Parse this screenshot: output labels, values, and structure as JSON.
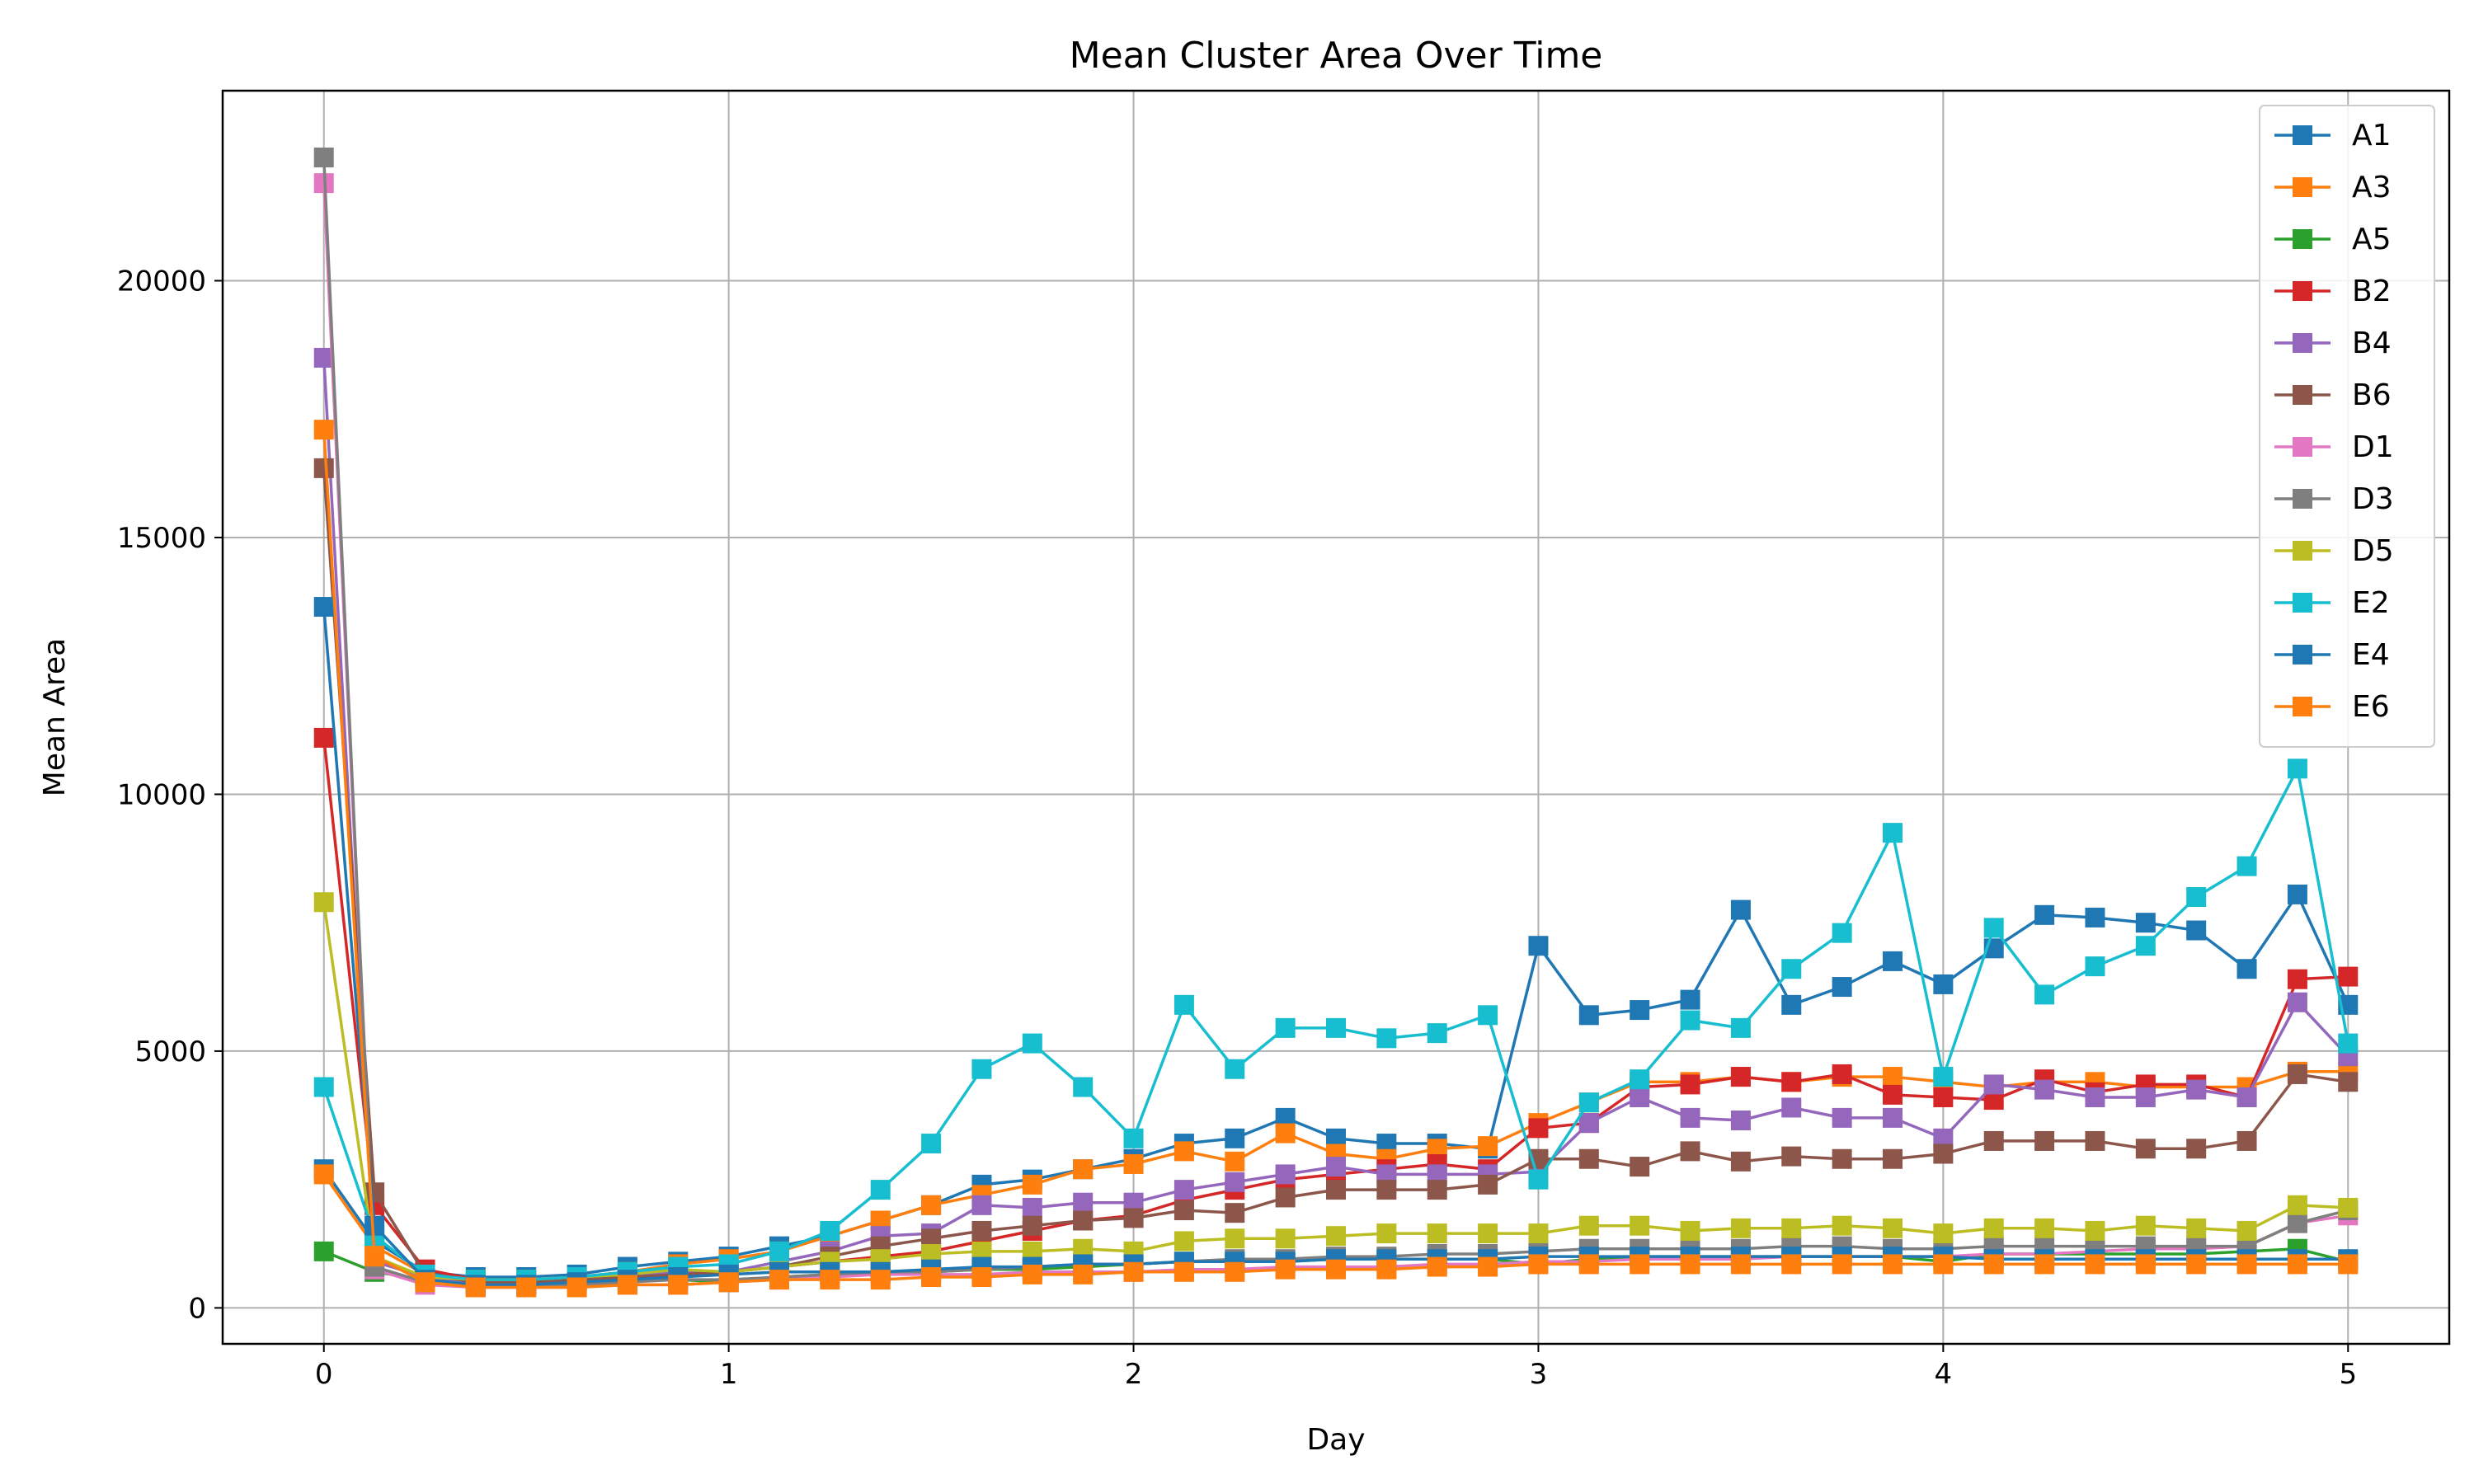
{
  "chart_data": {
    "type": "line",
    "title": "Mean Cluster Area Over Time",
    "xlabel": "Day",
    "ylabel": "Mean Area",
    "xlim": [
      -0.25,
      5.25
    ],
    "ylim": [
      -700,
      23700
    ],
    "xticks": [
      0,
      1,
      2,
      3,
      4,
      5
    ],
    "yticks": [
      0,
      5000,
      10000,
      15000,
      20000
    ],
    "grid": true,
    "legend_position": "top-right",
    "marker": "square",
    "x": [
      0,
      0.125,
      0.25,
      0.375,
      0.5,
      0.625,
      0.75,
      0.875,
      1,
      1.125,
      1.25,
      1.375,
      1.5,
      1.625,
      1.75,
      1.875,
      2,
      2.125,
      2.25,
      2.375,
      2.5,
      2.625,
      2.75,
      2.875,
      3,
      3.125,
      3.25,
      3.375,
      3.5,
      3.625,
      3.75,
      3.875,
      4,
      4.125,
      4.25,
      4.375,
      4.5,
      4.625,
      4.75,
      4.875,
      5
    ],
    "series": [
      {
        "name": "A1",
        "color": "#1f77b4",
        "values": [
          2700,
          1300,
          700,
          600,
          600,
          650,
          800,
          900,
          1000,
          1200,
          1400,
          1700,
          2000,
          2400,
          2500,
          2700,
          2900,
          3200,
          3300,
          3700,
          3300,
          3200,
          3200,
          3100,
          7050,
          5700,
          5800,
          6000,
          7750,
          5900,
          6250,
          6750,
          6300,
          7000,
          7650,
          7600,
          7500,
          7350,
          6600,
          8050,
          5900
        ]
      },
      {
        "name": "A3",
        "color": "#ff7f0e",
        "values": [
          2600,
          1200,
          650,
          550,
          550,
          600,
          700,
          850,
          950,
          1100,
          1400,
          1700,
          2000,
          2200,
          2400,
          2700,
          2800,
          3050,
          2850,
          3400,
          3000,
          2900,
          3100,
          3150,
          3600,
          4000,
          4400,
          4400,
          4500,
          4400,
          4500,
          4500,
          4400,
          4300,
          4400,
          4400,
          4300,
          4300,
          4300,
          4600,
          4600
        ]
      },
      {
        "name": "A5",
        "color": "#2ca02c",
        "values": [
          1100,
          700,
          550,
          450,
          450,
          500,
          550,
          550,
          500,
          600,
          650,
          700,
          700,
          750,
          750,
          800,
          850,
          900,
          900,
          900,
          950,
          950,
          950,
          950,
          850,
          950,
          1000,
          1000,
          1000,
          1000,
          1000,
          1000,
          900,
          1050,
          1050,
          1050,
          1050,
          1050,
          1100,
          1150,
          900
        ]
      },
      {
        "name": "B2",
        "color": "#d62728",
        "values": [
          11100,
          2000,
          750,
          550,
          550,
          600,
          650,
          700,
          700,
          800,
          900,
          1000,
          1100,
          1300,
          1500,
          1700,
          1800,
          2100,
          2300,
          2500,
          2600,
          2700,
          2800,
          2700,
          3500,
          3600,
          4300,
          4350,
          4500,
          4400,
          4550,
          4150,
          4100,
          4050,
          4450,
          4200,
          4350,
          4350,
          4100,
          6400,
          6450
        ]
      },
      {
        "name": "B4",
        "color": "#9467bd",
        "values": [
          18500,
          900,
          600,
          500,
          500,
          550,
          650,
          700,
          700,
          900,
          1100,
          1400,
          1450,
          2000,
          1950,
          2050,
          2050,
          2300,
          2450,
          2600,
          2750,
          2600,
          2600,
          2600,
          2650,
          3600,
          4100,
          3700,
          3650,
          3900,
          3700,
          3700,
          3300,
          4350,
          4250,
          4100,
          4100,
          4250,
          4100,
          5950,
          4900
        ]
      },
      {
        "name": "B6",
        "color": "#8c564b",
        "values": [
          16350,
          2250,
          650,
          500,
          500,
          550,
          600,
          650,
          700,
          800,
          1000,
          1200,
          1350,
          1500,
          1600,
          1700,
          1750,
          1900,
          1850,
          2150,
          2300,
          2300,
          2300,
          2400,
          2900,
          2900,
          2750,
          3050,
          2850,
          2950,
          2900,
          2900,
          3000,
          3250,
          3250,
          3250,
          3100,
          3100,
          3250,
          4550,
          4400
        ]
      },
      {
        "name": "D1",
        "color": "#e377c2",
        "values": [
          21900,
          750,
          450,
          400,
          400,
          400,
          450,
          450,
          500,
          550,
          600,
          650,
          650,
          650,
          700,
          700,
          700,
          750,
          750,
          800,
          800,
          800,
          850,
          850,
          900,
          900,
          950,
          950,
          950,
          1000,
          1000,
          1000,
          1000,
          1050,
          1050,
          1100,
          1150,
          1150,
          1200,
          1650,
          1800
        ]
      },
      {
        "name": "D3",
        "color": "#7f7f7f",
        "values": [
          22400,
          800,
          500,
          450,
          450,
          450,
          500,
          550,
          550,
          600,
          650,
          700,
          700,
          750,
          800,
          850,
          850,
          900,
          950,
          950,
          1000,
          1000,
          1050,
          1050,
          1100,
          1150,
          1150,
          1150,
          1150,
          1200,
          1200,
          1150,
          1150,
          1200,
          1200,
          1200,
          1200,
          1200,
          1200,
          1650,
          1900
        ]
      },
      {
        "name": "D5",
        "color": "#bcbd22",
        "values": [
          7900,
          1000,
          600,
          550,
          550,
          600,
          650,
          750,
          700,
          800,
          900,
          950,
          1050,
          1100,
          1100,
          1150,
          1100,
          1300,
          1350,
          1350,
          1400,
          1450,
          1450,
          1450,
          1450,
          1600,
          1600,
          1500,
          1550,
          1550,
          1600,
          1550,
          1450,
          1550,
          1550,
          1500,
          1600,
          1550,
          1500,
          2000,
          1950
        ]
      },
      {
        "name": "E2",
        "color": "#17becf",
        "values": [
          4300,
          1400,
          650,
          550,
          550,
          600,
          700,
          800,
          850,
          1100,
          1500,
          2300,
          3200,
          4650,
          5150,
          4300,
          3300,
          5900,
          4650,
          5450,
          5450,
          5250,
          5350,
          5700,
          2500,
          4000,
          4450,
          5600,
          5450,
          6600,
          7300,
          9250,
          4500,
          7400,
          6100,
          6650,
          7050,
          8000,
          8600,
          10500,
          5150
        ]
      },
      {
        "name": "E4",
        "color": "#1f77b4",
        "values": [
          13650,
          1600,
          550,
          450,
          450,
          500,
          550,
          600,
          650,
          700,
          700,
          700,
          750,
          800,
          800,
          850,
          850,
          900,
          900,
          900,
          950,
          950,
          950,
          950,
          1000,
          1000,
          1000,
          1000,
          1000,
          1000,
          1000,
          1000,
          1000,
          950,
          950,
          950,
          950,
          950,
          950,
          950,
          950
        ]
      },
      {
        "name": "E6",
        "color": "#ff7f0e",
        "values": [
          17100,
          1000,
          500,
          400,
          400,
          400,
          450,
          450,
          500,
          550,
          550,
          550,
          600,
          600,
          650,
          650,
          700,
          700,
          700,
          750,
          750,
          750,
          800,
          800,
          850,
          850,
          850,
          850,
          850,
          850,
          850,
          850,
          850,
          850,
          850,
          850,
          850,
          850,
          850,
          850,
          850
        ]
      }
    ]
  }
}
